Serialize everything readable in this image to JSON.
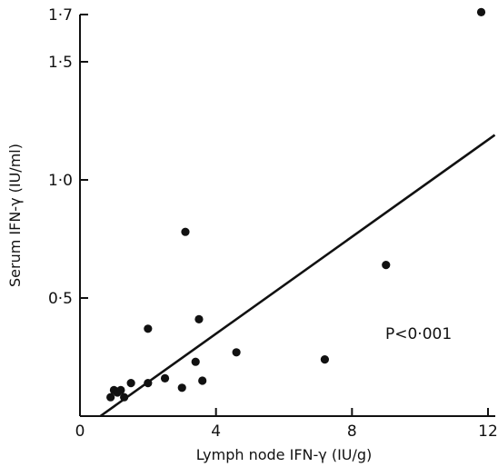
{
  "chart_data": {
    "type": "scatter",
    "xlabel": "Lymph node IFN-γ (IU/g)",
    "ylabel": "Serum IFN-γ (IU/ml)",
    "xlim": [
      0,
      12
    ],
    "ylim": [
      0,
      1.7
    ],
    "x_ticks": [
      0,
      4,
      8,
      12
    ],
    "x_tick_labels": [
      "0",
      "4",
      "8",
      "12"
    ],
    "y_ticks": [
      0.5,
      1.0,
      1.5,
      1.7
    ],
    "y_tick_labels": [
      "0·5",
      "1·0",
      "1·5",
      "1·7"
    ],
    "annotation": "P<0·001",
    "grid": false,
    "points": [
      {
        "x": 0.9,
        "y": 0.08
      },
      {
        "x": 1.0,
        "y": 0.11
      },
      {
        "x": 1.1,
        "y": 0.1
      },
      {
        "x": 1.2,
        "y": 0.11
      },
      {
        "x": 1.3,
        "y": 0.08
      },
      {
        "x": 1.5,
        "y": 0.14
      },
      {
        "x": 2.0,
        "y": 0.14
      },
      {
        "x": 2.0,
        "y": 0.37
      },
      {
        "x": 2.5,
        "y": 0.16
      },
      {
        "x": 3.0,
        "y": 0.12
      },
      {
        "x": 3.1,
        "y": 0.78
      },
      {
        "x": 3.4,
        "y": 0.23
      },
      {
        "x": 3.5,
        "y": 0.41
      },
      {
        "x": 3.6,
        "y": 0.15
      },
      {
        "x": 4.6,
        "y": 0.27
      },
      {
        "x": 7.2,
        "y": 0.24
      },
      {
        "x": 9.0,
        "y": 0.64
      },
      {
        "x": 11.8,
        "y": 1.71
      }
    ],
    "regression_line": {
      "x": [
        0.6,
        12.2
      ],
      "y": [
        0,
        1.19
      ]
    }
  }
}
